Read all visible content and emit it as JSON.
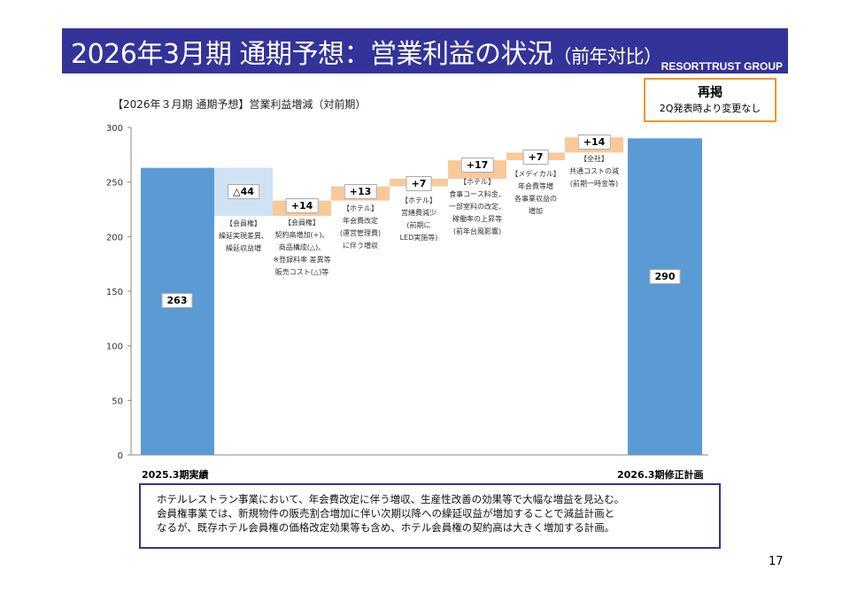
{
  "header": {
    "title": "2026年3月期 通期予想：営業利益の状況",
    "title_suffix": "（前年対比）",
    "brand": "RESORTTRUST GROUP"
  },
  "note_box": {
    "heading": "再掲",
    "text": "2Q発表時より変更なし"
  },
  "comment": [
    "ホテルレストラン事業において、年会費改定に伴う増収、生産性改善の効果等で大幅な増益を見込む。",
    "会員権事業では、新規物件の販売割合増加に伴い次期以降への繰延収益が増加することで減益計画と",
    "なるが、既存ホテル会員権の価格改定効果等も含め、ホテル会員権の契約高は大きく増加する計画。"
  ],
  "page_number": "17",
  "colors": {
    "total": "#5b9bd5",
    "decrease": "#cfe2f3",
    "increase": "#fac99a",
    "banner": "#333399",
    "box": "#f0962a"
  },
  "chart_data": {
    "type": "waterfall",
    "title": "【2026年３月期 通期予想】営業利益増減（対前期）",
    "ylim": [
      0,
      300
    ],
    "yticks": [
      "0",
      "50",
      "100",
      "150",
      "200",
      "250",
      "300"
    ],
    "start": {
      "label": "2025.3期実績",
      "value": 263,
      "value_label": "263"
    },
    "steps": [
      {
        "delta": -44,
        "label": "△44",
        "note": "【会員権】\n繰延実現差異、\n繰延収益増"
      },
      {
        "delta": 14,
        "label": "+14",
        "note": "【会員権】\n契約高増加(+)、\n商品構成(△)、\n※登録料率 差異等\n販売コスト(△)等"
      },
      {
        "delta": 13,
        "label": "+13",
        "note": "【ホテル】\n年会費改定\n(運営管理費)\nに伴う増収"
      },
      {
        "delta": 7,
        "label": "+7",
        "note": "【ホテル】\n営繕費減少\n(前期に\nLED実施等)"
      },
      {
        "delta": 17,
        "label": "+17",
        "note": "【ホテル】\n食事コース料金、\n一部室料の改定、\n稼働率の上昇等\n(前年台風影響)"
      },
      {
        "delta": 7,
        "label": "+7",
        "note": "【メディカル】\n年会費等増\n各事業収益の\n増加"
      },
      {
        "delta": 14,
        "label": "+14",
        "note": "【全社】\n共通コストの減\n(前期一時金等)"
      }
    ],
    "end": {
      "label": "2026.3期修正計画",
      "value": 290,
      "value_label": "290"
    }
  }
}
